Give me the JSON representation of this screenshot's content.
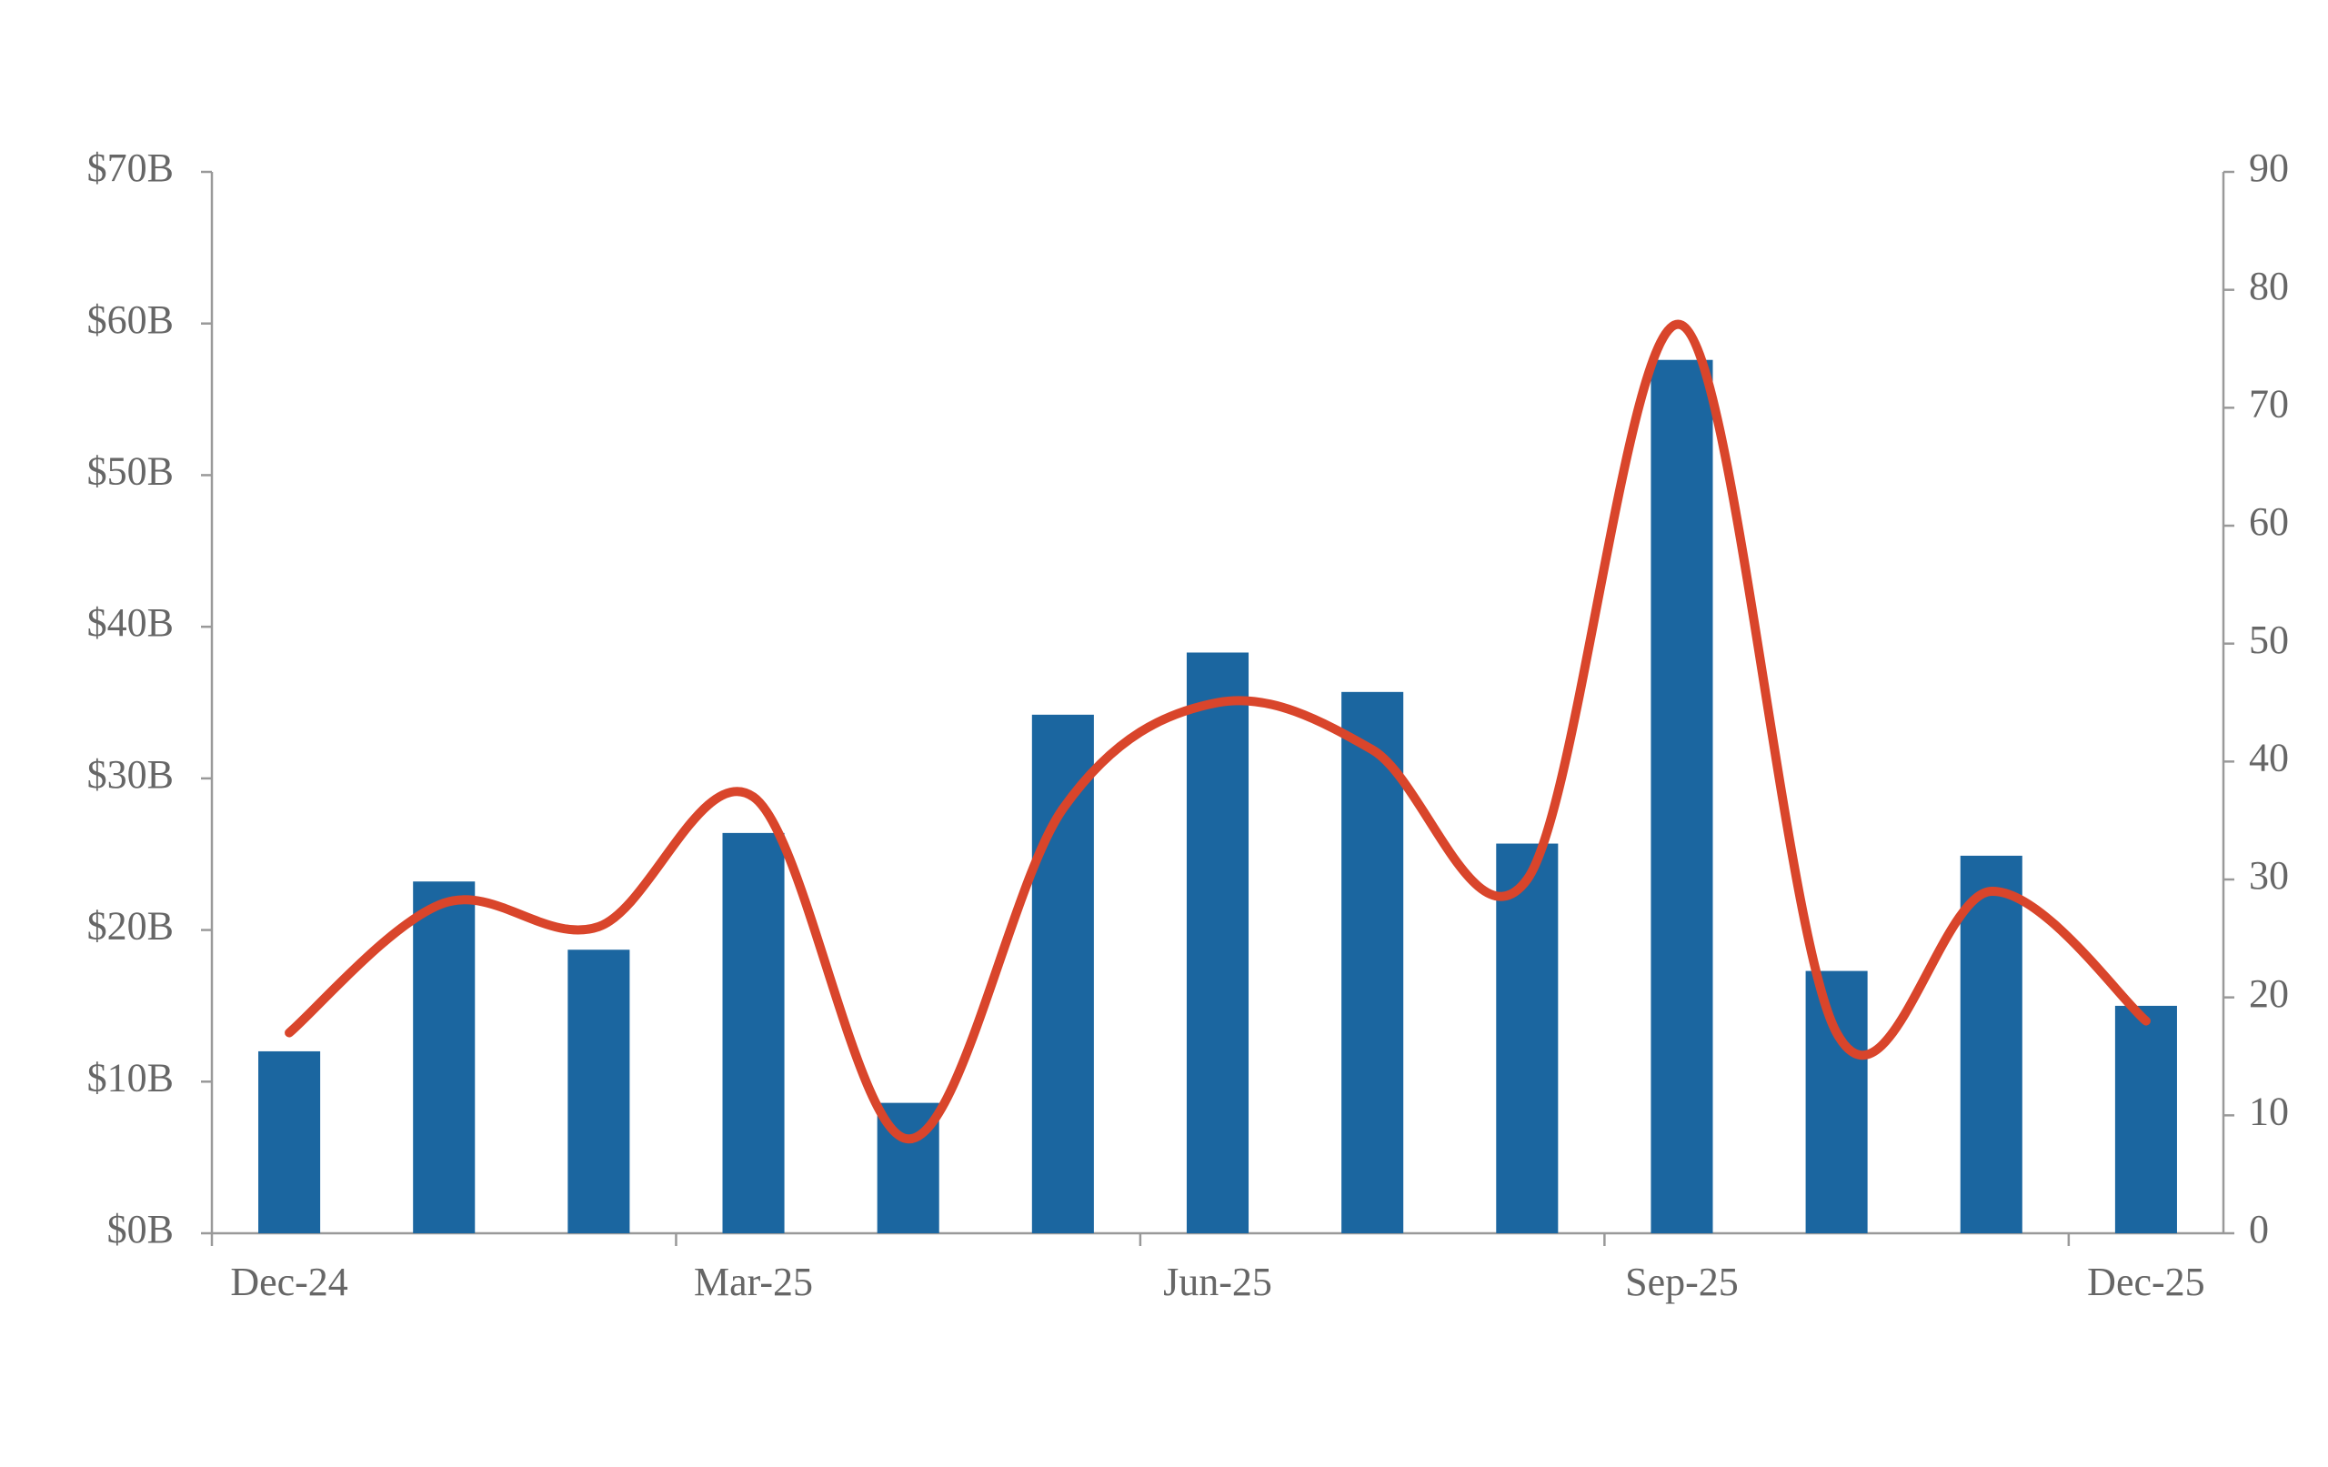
{
  "chart_data": {
    "type": "bar_line",
    "categories": [
      "Dec-24",
      null,
      null,
      "Mar-25",
      null,
      null,
      "Jun-25",
      null,
      null,
      "Sep-25",
      null,
      null,
      "Dec-25"
    ],
    "series": [
      {
        "type": "bar",
        "color": "#1b66a0",
        "values": [
          12.0,
          23.2,
          18.7,
          26.4,
          8.6,
          34.2,
          38.3,
          35.7,
          25.7,
          57.6,
          17.3,
          24.9,
          15.0
        ]
      },
      {
        "type": "line",
        "axis": "y2",
        "color": "#d9452b",
        "smooth": true,
        "values": [
          17,
          28,
          26,
          37,
          8,
          36,
          45,
          41,
          30,
          77,
          17,
          29,
          18
        ]
      }
    ],
    "ylim": [
      0,
      70
    ],
    "yticks": [
      {
        "value": 0,
        "label": "$0B"
      },
      {
        "value": 10,
        "label": "$10B"
      },
      {
        "value": 20,
        "label": "$20B"
      },
      {
        "value": 30,
        "label": "$30B"
      },
      {
        "value": 40,
        "label": "$40B"
      },
      {
        "value": 50,
        "label": "$50B"
      },
      {
        "value": 60,
        "label": "$60B"
      },
      {
        "value": 70,
        "label": "$70B"
      }
    ],
    "y2lim": [
      0,
      90
    ],
    "y2ticks": [
      0,
      10,
      20,
      30,
      40,
      50,
      60,
      70,
      80,
      90
    ]
  }
}
